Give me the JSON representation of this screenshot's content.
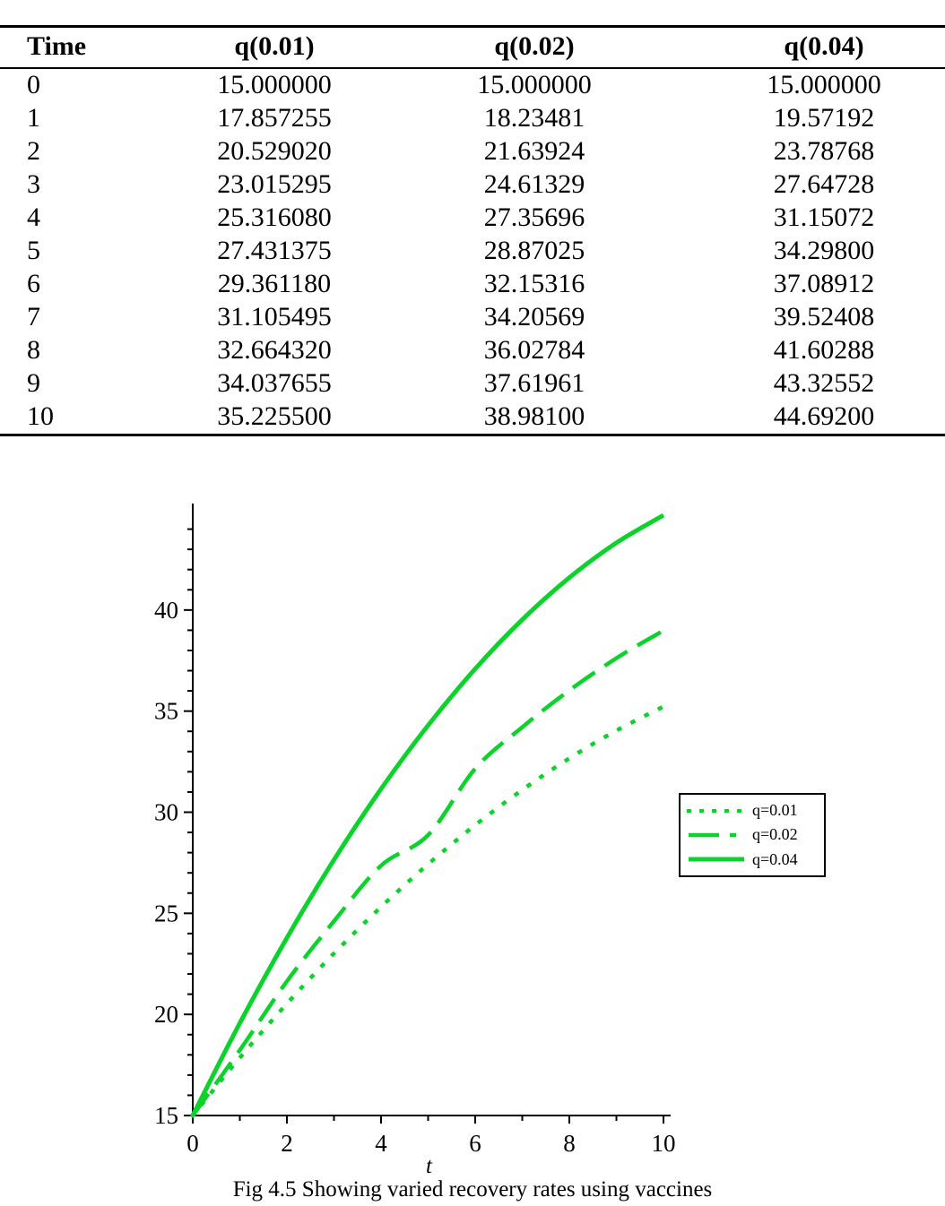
{
  "table": {
    "headers": [
      "Time",
      "q(0.01)",
      "q(0.02)",
      "q(0.04)"
    ],
    "rows": [
      [
        "0",
        "15.000000",
        "15.000000",
        "15.000000"
      ],
      [
        "1",
        "17.857255",
        "18.23481",
        "19.57192"
      ],
      [
        "2",
        "20.529020",
        "21.63924",
        "23.78768"
      ],
      [
        "3",
        "23.015295",
        "24.61329",
        "27.64728"
      ],
      [
        "4",
        "25.316080",
        "27.35696",
        "31.15072"
      ],
      [
        "5",
        "27.431375",
        "28.87025",
        "34.29800"
      ],
      [
        "6",
        "29.361180",
        "32.15316",
        "37.08912"
      ],
      [
        "7",
        "31.105495",
        "34.20569",
        "39.52408"
      ],
      [
        "8",
        "32.664320",
        "36.02784",
        "41.60288"
      ],
      [
        "9",
        "34.037655",
        "37.61961",
        "43.32552"
      ],
      [
        "10",
        "35.225500",
        "38.98100",
        "44.69200"
      ]
    ]
  },
  "chart_data": {
    "type": "line",
    "x": [
      0,
      1,
      2,
      3,
      4,
      5,
      6,
      7,
      8,
      9,
      10
    ],
    "series": [
      {
        "name": "q=0.01",
        "style": "dotted",
        "values": [
          15.0,
          17.857255,
          20.52902,
          23.015295,
          25.31608,
          27.431375,
          29.36118,
          31.105495,
          32.66432,
          34.037655,
          35.2255
        ]
      },
      {
        "name": "q=0.02",
        "style": "dashed",
        "values": [
          15.0,
          18.23481,
          21.63924,
          24.61329,
          27.35696,
          28.87025,
          32.15316,
          34.20569,
          36.02784,
          37.61961,
          38.981
        ]
      },
      {
        "name": "q=0.04",
        "style": "solid",
        "values": [
          15.0,
          19.57192,
          23.78768,
          27.64728,
          31.15072,
          34.298,
          37.08912,
          39.52408,
          41.60288,
          43.32552,
          44.692
        ]
      }
    ],
    "title": "",
    "xlabel": "t",
    "ylabel": "",
    "xlim": [
      0,
      10
    ],
    "ylim": [
      15,
      45
    ],
    "x_major_ticks": [
      0,
      2,
      4,
      6,
      8,
      10
    ],
    "x_minor_ticks": [
      1,
      3,
      5,
      7,
      9
    ],
    "y_major_ticks": [
      15,
      20,
      25,
      30,
      35,
      40
    ],
    "y_minor_step": 1,
    "grid": false,
    "legend_position": "inside-right",
    "line_color": "#0CD32C",
    "axis_color": "#000000"
  },
  "caption": "Fig 4.5 Showing varied recovery rates using vaccines"
}
